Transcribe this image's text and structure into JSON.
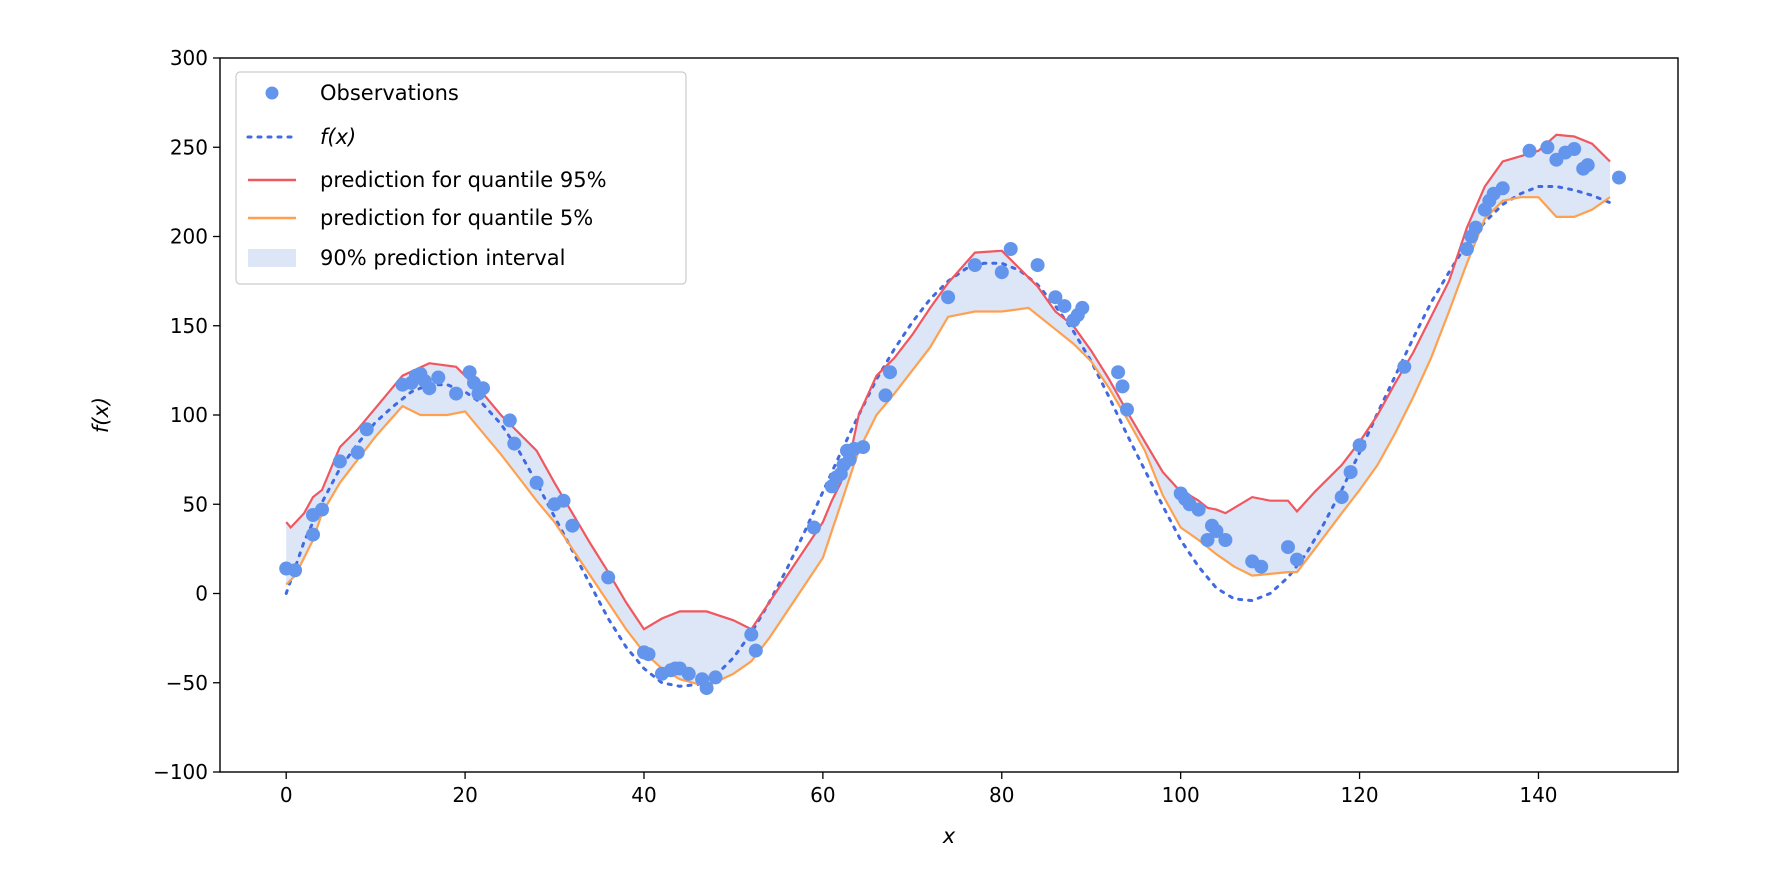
{
  "chart_data": {
    "type": "line",
    "title": "",
    "xlabel": "x",
    "ylabel": "f(x)",
    "xlim": [
      -7.4,
      155.6
    ],
    "ylim": [
      -100,
      300
    ],
    "xticks": [
      0,
      20,
      40,
      60,
      80,
      100,
      120,
      140
    ],
    "yticks": [
      -100,
      -50,
      0,
      50,
      100,
      150,
      200,
      250,
      300
    ],
    "xtick_labels": [
      "0",
      "20",
      "40",
      "60",
      "80",
      "100",
      "120",
      "140"
    ],
    "ytick_labels": [
      "−100",
      "−50",
      "0",
      "50",
      "100",
      "150",
      "200",
      "250",
      "300"
    ],
    "grid": false,
    "legend_position": "top-left",
    "legend": [
      {
        "label": "Observations",
        "kind": "marker",
        "color": "#6495ED"
      },
      {
        "label": "f(x)",
        "kind": "dotted-line",
        "color": "#4169E1"
      },
      {
        "label": "prediction for quantile 95%",
        "kind": "line",
        "color": "#F0575E"
      },
      {
        "label": "prediction for quantile 5%",
        "kind": "line",
        "color": "#FFA04F"
      },
      {
        "label": "90% prediction interval",
        "kind": "patch",
        "color": "#DCE6F7"
      }
    ],
    "series": [
      {
        "name": "prediction for quantile 95%",
        "color": "#F0575E",
        "x": [
          0,
          0.5,
          2,
          3,
          4,
          6,
          8,
          10,
          13,
          16,
          19,
          20,
          22,
          24,
          26,
          28,
          30,
          32,
          34,
          36,
          38,
          40,
          42,
          44,
          47,
          50,
          52,
          54,
          56,
          58,
          60,
          61,
          62,
          63,
          64,
          66,
          68,
          70,
          72,
          74,
          77,
          80,
          82,
          84,
          86,
          88,
          90,
          92,
          94,
          96,
          98,
          100,
          101,
          102,
          103,
          104,
          105,
          108,
          110,
          112,
          113,
          115,
          118,
          120,
          122,
          124,
          126,
          128,
          130,
          132,
          134,
          136,
          138,
          140,
          142,
          144,
          146,
          148
        ],
        "y": [
          40,
          37,
          45,
          54,
          58,
          82,
          92,
          104,
          122,
          129,
          127,
          122,
          112,
          100,
          90,
          80,
          62,
          45,
          28,
          12,
          -5,
          -20,
          -14,
          -10,
          -10,
          -15,
          -20,
          -5,
          10,
          25,
          40,
          52,
          62,
          76,
          100,
          122,
          132,
          145,
          160,
          174,
          191,
          192,
          182,
          172,
          158,
          150,
          136,
          120,
          102,
          85,
          68,
          57,
          55,
          52,
          48,
          47,
          45,
          54,
          52,
          52,
          46,
          57,
          72,
          85,
          100,
          118,
          135,
          155,
          175,
          205,
          228,
          242,
          245,
          248,
          257,
          256,
          252,
          242
        ]
      },
      {
        "name": "prediction for quantile 5%",
        "color": "#FFA04F",
        "x": [
          0,
          1,
          2,
          3,
          4,
          6,
          8,
          10,
          13,
          15,
          18,
          20,
          22,
          24,
          26,
          28,
          30,
          32,
          34,
          36,
          38,
          40,
          42,
          44,
          47,
          50,
          52,
          54,
          56,
          58,
          60,
          61,
          62,
          63,
          64,
          66,
          68,
          70,
          72,
          74,
          77,
          80,
          83,
          86,
          88,
          90,
          92,
          94,
          96,
          98,
          100,
          102,
          104,
          106,
          108,
          110,
          112,
          113,
          115,
          118,
          120,
          122,
          124,
          126,
          128,
          130,
          132,
          134,
          136,
          138,
          140,
          142,
          144,
          146,
          148
        ],
        "y": [
          5,
          10,
          20,
          30,
          45,
          62,
          75,
          88,
          105,
          100,
          100,
          102,
          90,
          78,
          65,
          52,
          40,
          25,
          10,
          -5,
          -20,
          -33,
          -42,
          -48,
          -52,
          -45,
          -38,
          -25,
          -10,
          5,
          20,
          35,
          50,
          65,
          80,
          100,
          112,
          125,
          138,
          155,
          158,
          158,
          160,
          148,
          140,
          130,
          115,
          98,
          80,
          55,
          37,
          30,
          22,
          15,
          10,
          11,
          12,
          12,
          25,
          45,
          58,
          72,
          90,
          110,
          132,
          158,
          185,
          210,
          220,
          222,
          222,
          211,
          211,
          215,
          222
        ]
      },
      {
        "name": "f(x)",
        "color": "#4169E1",
        "style": "dotted",
        "x": [
          0,
          2,
          4,
          6,
          8,
          10,
          12,
          14,
          16,
          18,
          20,
          22,
          24,
          26,
          28,
          30,
          32,
          34,
          36,
          38,
          40,
          42,
          44,
          46,
          48,
          50,
          52,
          54,
          56,
          58,
          60,
          62,
          64,
          66,
          68,
          70,
          72,
          74,
          76,
          78,
          80,
          82,
          84,
          86,
          88,
          90,
          92,
          94,
          96,
          98,
          100,
          102,
          104,
          106,
          108,
          110,
          112,
          114,
          116,
          118,
          120,
          122,
          124,
          126,
          128,
          130,
          132,
          134,
          136,
          138,
          140,
          142,
          144,
          146,
          148
        ],
        "y": [
          0,
          29,
          51,
          70,
          84,
          96,
          105,
          113,
          117,
          117,
          113,
          106,
          95,
          80,
          62,
          43,
          24,
          5,
          -14,
          -30,
          -42,
          -50,
          -52,
          -51,
          -46,
          -36,
          -22,
          -5,
          14,
          35,
          57,
          79,
          100,
          120,
          137,
          152,
          165,
          175,
          182,
          185,
          185,
          181,
          173,
          161,
          147,
          130,
          110,
          89,
          69,
          49,
          30,
          15,
          3,
          -3,
          -4,
          0,
          9,
          22,
          39,
          58,
          79,
          101,
          122,
          143,
          163,
          180,
          196,
          208,
          218,
          224,
          228,
          228,
          226,
          223,
          219
        ]
      },
      {
        "name": "Observations",
        "color": "#6495ED",
        "kind": "scatter",
        "x": [
          0,
          1,
          3,
          3,
          4,
          6,
          8,
          9,
          13,
          14,
          14.5,
          15,
          15.5,
          16,
          17,
          19,
          20.5,
          21,
          21.5,
          22,
          25,
          25.5,
          28,
          30,
          31,
          32,
          36,
          40,
          40.5,
          42,
          43,
          43.5,
          44,
          45,
          46.5,
          47,
          48,
          52,
          52.5,
          59,
          61,
          61.5,
          62,
          62.3,
          62.7,
          63,
          63.5,
          64.5,
          67,
          67.5,
          74,
          77,
          80,
          81,
          84,
          86,
          87,
          88,
          88.5,
          89,
          93,
          93.5,
          94,
          100,
          100.5,
          101,
          102,
          103,
          103.5,
          104,
          105,
          108,
          109,
          112,
          113,
          118,
          119,
          120,
          125,
          132,
          132.5,
          133,
          134,
          134.5,
          135,
          136,
          139,
          141,
          142,
          143,
          144,
          145,
          145.5,
          149
        ],
        "y": [
          14,
          13,
          33,
          44,
          47,
          74,
          79,
          92,
          117,
          118,
          122,
          123,
          119,
          115,
          121,
          112,
          124,
          118,
          112,
          115,
          97,
          84,
          62,
          50,
          52,
          38,
          9,
          -33,
          -34,
          -45,
          -43,
          -42,
          -42,
          -45,
          -48,
          -53,
          -47,
          -23,
          -32,
          37,
          60,
          65,
          67,
          72,
          80,
          75,
          81,
          82,
          111,
          124,
          166,
          184,
          180,
          193,
          184,
          166,
          161,
          153,
          156,
          160,
          124,
          116,
          103,
          56,
          53,
          50,
          47,
          30,
          38,
          35,
          30,
          18,
          15,
          26,
          19,
          54,
          68,
          83,
          127,
          193,
          200,
          205,
          215,
          220,
          224,
          227,
          248,
          250,
          243,
          247,
          249,
          238,
          240,
          233
        ]
      }
    ]
  }
}
